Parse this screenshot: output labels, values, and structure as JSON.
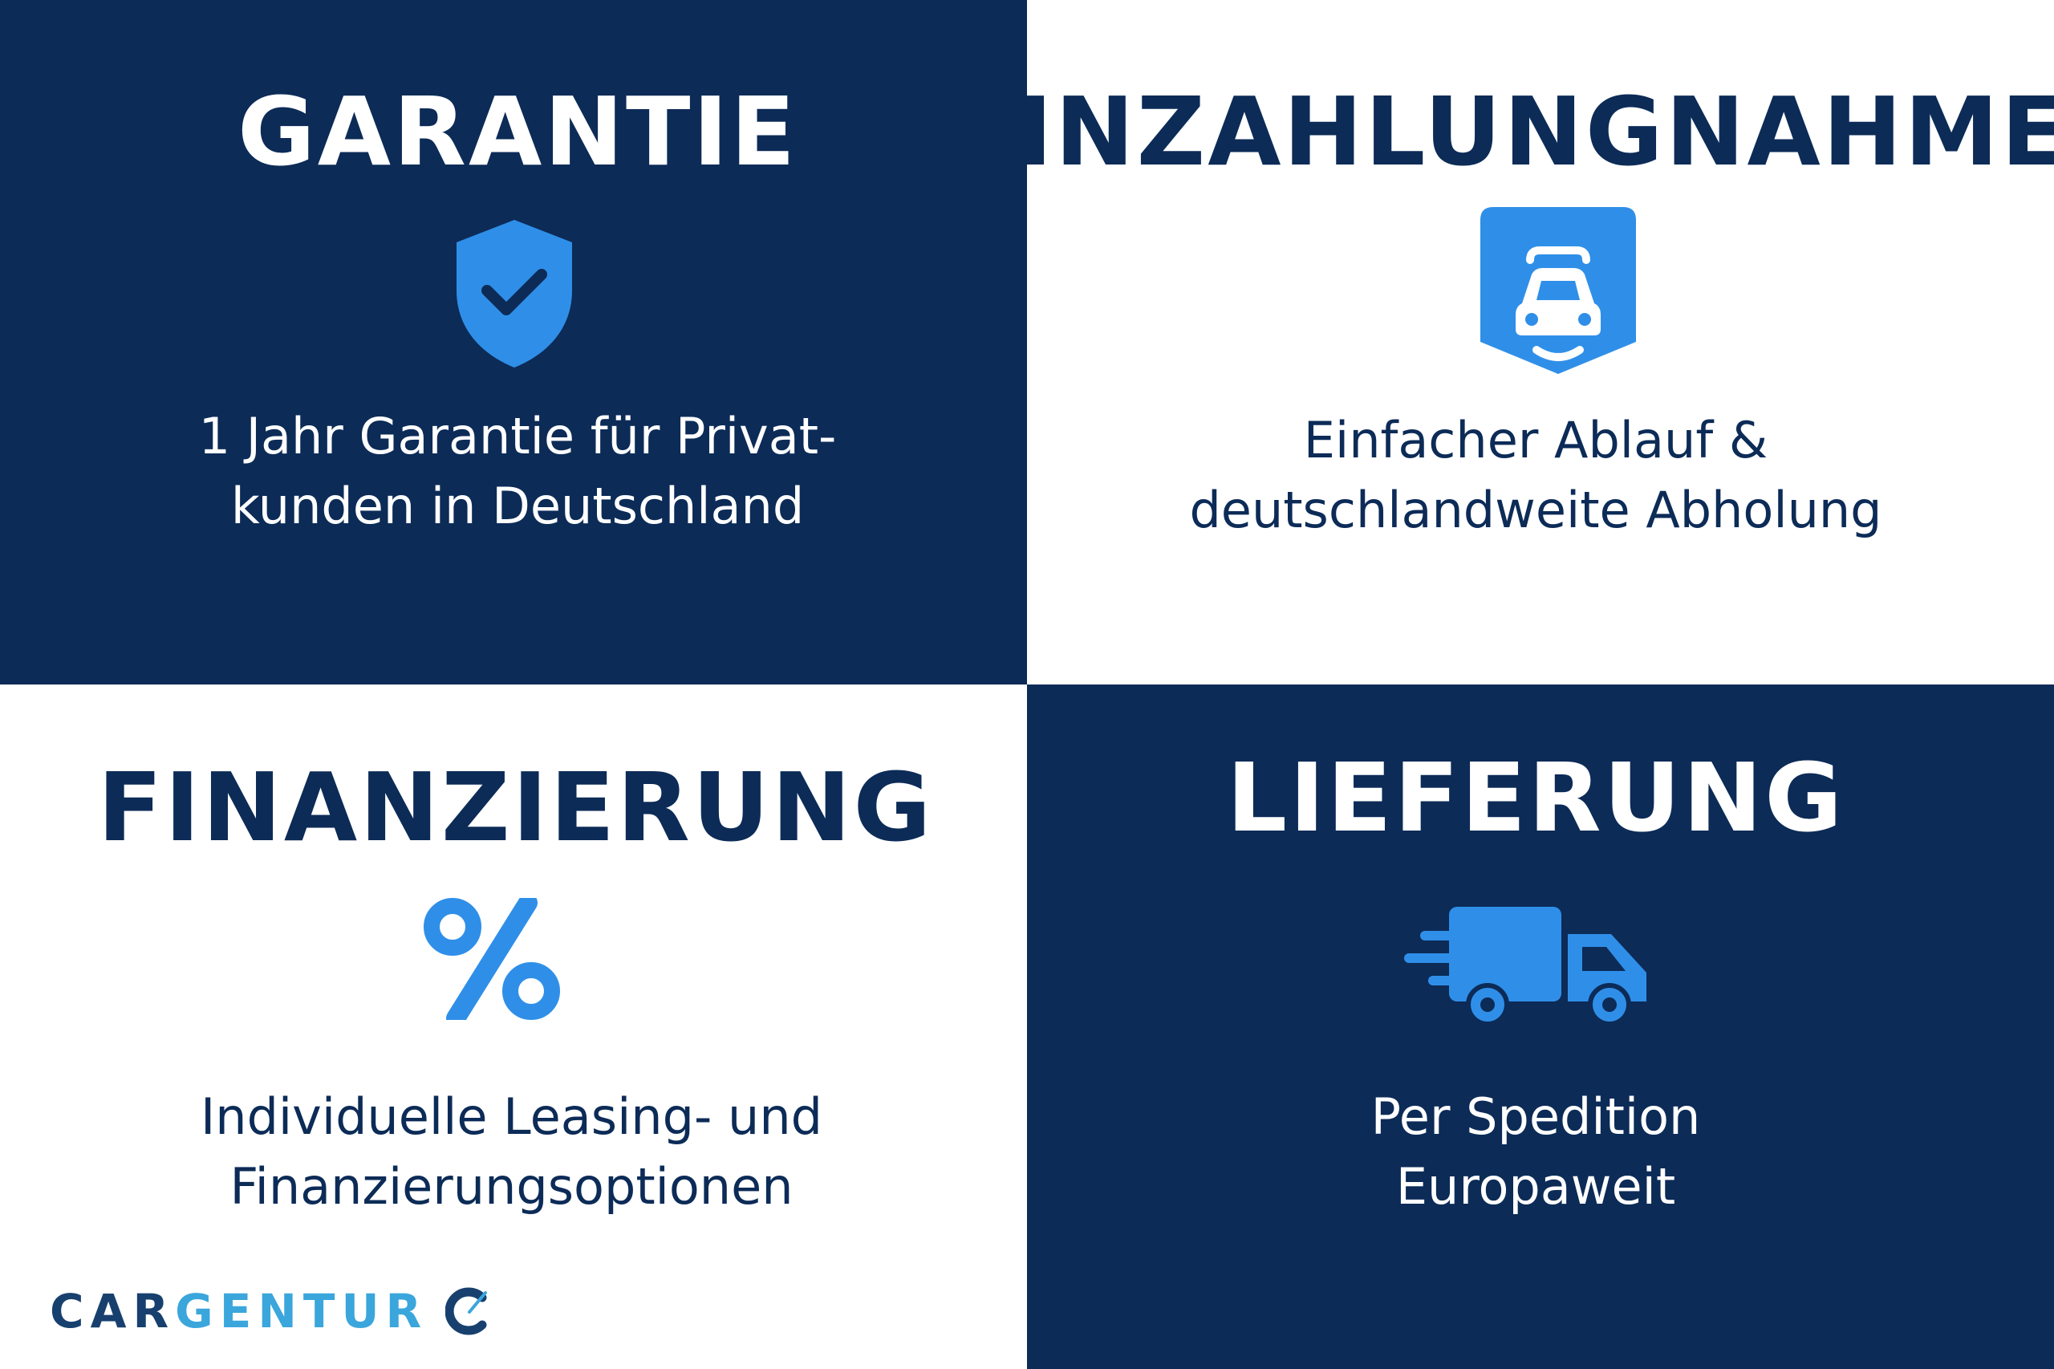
{
  "colors": {
    "navy": "#0c2b57",
    "white": "#ffffff",
    "accent": "#2f8fe8"
  },
  "panels": [
    {
      "title": "GARANTIE",
      "icon": "shield-check-icon",
      "lines": [
        "1 Jahr Garantie für Privat-",
        "kunden in Deutschland"
      ]
    },
    {
      "title": "INZAHLUNGNAHME",
      "icon": "car-badge-icon",
      "lines": [
        "Einfacher Ablauf &",
        "deutschlandweite Abholung"
      ]
    },
    {
      "title": "FINANZIERUNG",
      "icon": "percent-icon",
      "lines": [
        "Individuelle Leasing- und",
        "Finanzierungsoptionen"
      ]
    },
    {
      "title": "LIEFERUNG",
      "icon": "delivery-truck-icon",
      "lines": [
        "Per Spedition",
        "Europaweit"
      ]
    }
  ],
  "logo": {
    "part1": "CAR",
    "part2": "GENTUR"
  }
}
